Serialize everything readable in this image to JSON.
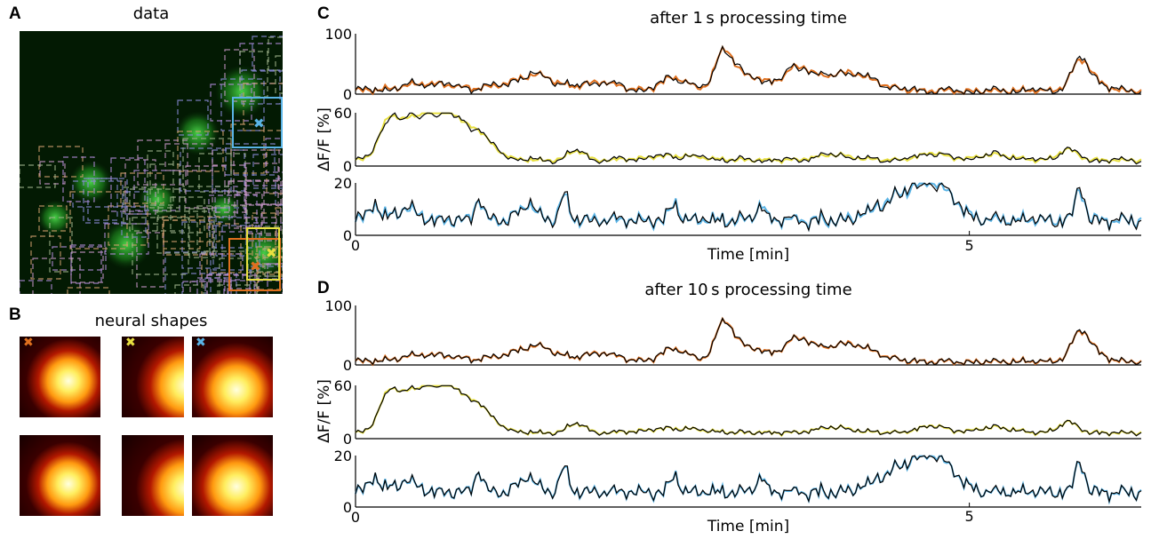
{
  "panels": {
    "A": {
      "letter": "A",
      "title": "data"
    },
    "B": {
      "letter": "B",
      "title": "neural shapes"
    },
    "C": {
      "letter": "C",
      "title": "after 1 s processing time"
    },
    "D": {
      "letter": "D",
      "title": "after 10 s processing time"
    }
  },
  "markers": [
    {
      "color": "#e0701e",
      "glyph": "✖"
    },
    {
      "color": "#e8e040",
      "glyph": "✖"
    },
    {
      "color": "#5ab4e6",
      "glyph": "✖"
    }
  ],
  "colors": {
    "ground_truth": "#000000",
    "neuron_1": "#e0701e",
    "neuron_2": "#e8e040",
    "neuron_3": "#5ab4e6",
    "fluorescence": "#3cc83c"
  },
  "chart_data": [
    {
      "type": "line",
      "panel": "C",
      "title": "after 1 s processing time",
      "xlabel": "Time [min]",
      "ylabel": "ΔF/F [%]",
      "xlim": [
        0,
        6.4
      ],
      "xticks": [
        0,
        5
      ],
      "subplots": [
        {
          "ylim": [
            0,
            100
          ],
          "yticks": [
            100
          ],
          "series": [
            {
              "name": "",
              "color": "#e0701e"
            },
            {
              "name": "",
              "color": "#000000"
            }
          ]
        },
        {
          "ylim": [
            0,
            60
          ],
          "yticks": [
            60
          ],
          "series": [
            {
              "name": "",
              "color": "#e8e040"
            },
            {
              "name": "",
              "color": "#000000"
            }
          ]
        },
        {
          "ylim": [
            0,
            20
          ],
          "yticks": [
            20
          ],
          "series": [
            {
              "name": "",
              "color": "#5ab4e6"
            },
            {
              "name": "",
              "color": "#000000"
            }
          ]
        }
      ]
    },
    {
      "type": "line",
      "panel": "D",
      "title": "after 10 s processing time",
      "xlabel": "Time [min]",
      "ylabel": "ΔF/F [%]",
      "xlim": [
        0,
        6.4
      ],
      "xticks": [
        0,
        5
      ],
      "subplots": [
        {
          "ylim": [
            0,
            100
          ],
          "yticks": [
            100
          ],
          "series": [
            {
              "name": "",
              "color": "#e0701e"
            },
            {
              "name": "",
              "color": "#000000"
            }
          ]
        },
        {
          "ylim": [
            0,
            60
          ],
          "yticks": [
            60
          ],
          "series": [
            {
              "name": "",
              "color": "#e8e040"
            },
            {
              "name": "",
              "color": "#000000"
            }
          ]
        },
        {
          "ylim": [
            0,
            20
          ],
          "yticks": [
            20
          ],
          "series": [
            {
              "name": "",
              "color": "#5ab4e6"
            },
            {
              "name": "",
              "color": "#000000"
            }
          ]
        }
      ]
    }
  ]
}
